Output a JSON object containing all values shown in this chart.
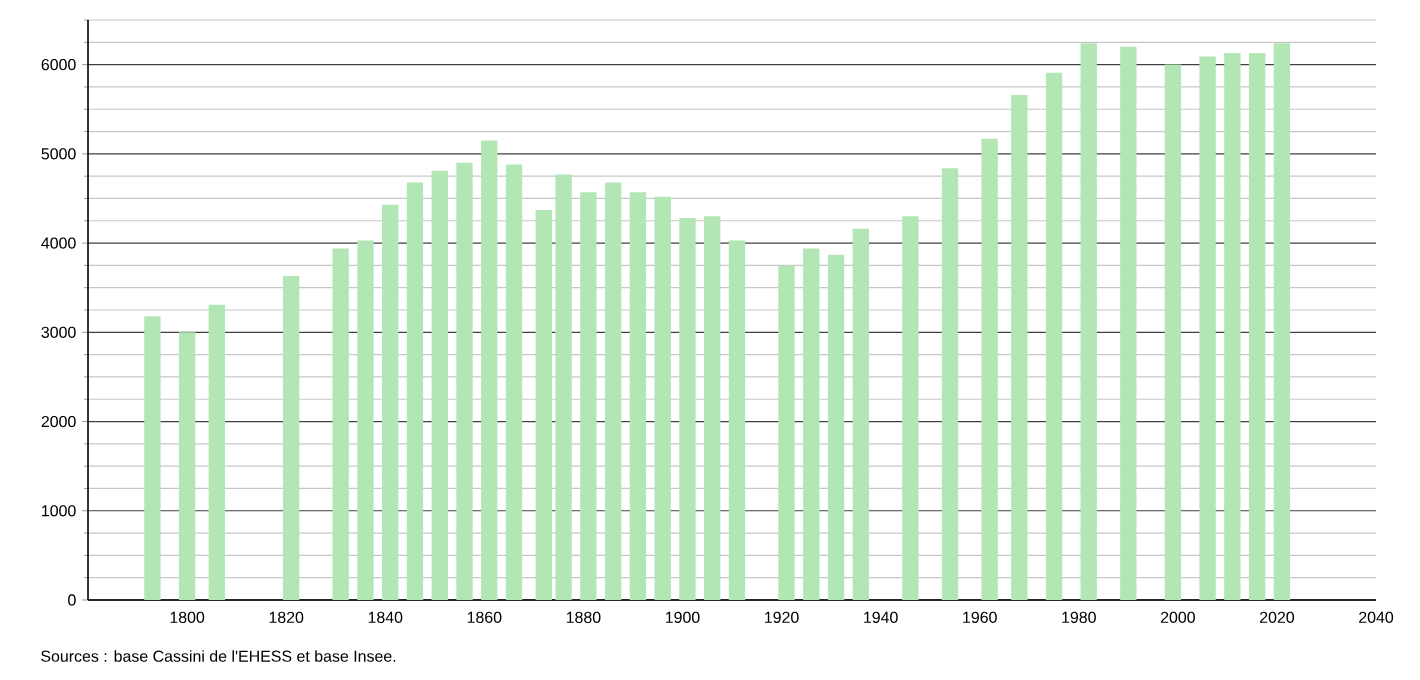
{
  "chart_data": {
    "type": "bar",
    "x": [
      1793,
      1800,
      1806,
      1821,
      1831,
      1836,
      1841,
      1846,
      1851,
      1856,
      1861,
      1866,
      1872,
      1876,
      1881,
      1886,
      1891,
      1896,
      1901,
      1906,
      1911,
      1921,
      1926,
      1931,
      1936,
      1946,
      1954,
      1962,
      1968,
      1975,
      1982,
      1990,
      1999,
      2006,
      2011,
      2016,
      2021
    ],
    "values": [
      3180,
      3000,
      3310,
      3630,
      3940,
      4030,
      4430,
      4680,
      4810,
      4900,
      5150,
      4880,
      4370,
      4770,
      4570,
      4680,
      4570,
      4520,
      4280,
      4300,
      4030,
      3750,
      3940,
      3870,
      4160,
      4300,
      4840,
      5170,
      5660,
      5910,
      6240,
      6200,
      6000,
      6090,
      6130,
      6130,
      6240
    ],
    "color": "#b3e6b5",
    "xlim": [
      1780,
      2040
    ],
    "ylim": [
      0,
      6500
    ],
    "xticks": [
      1800,
      1820,
      1840,
      1860,
      1880,
      1900,
      1920,
      1940,
      1960,
      1980,
      2000,
      2020,
      2040
    ],
    "yticks": [
      0,
      {
        "value": 250,
        "label": null
      },
      {
        "value": 500,
        "label": null
      },
      {
        "value": 750,
        "label": null
      },
      1000,
      {
        "value": 1250,
        "label": null
      },
      {
        "value": 1500,
        "label": null
      },
      {
        "value": 1750,
        "label": null
      },
      2000,
      {
        "value": 2250,
        "label": null
      },
      {
        "value": 2500,
        "label": null
      },
      {
        "value": 2750,
        "label": null
      },
      3000,
      {
        "value": 3250,
        "label": null
      },
      {
        "value": 3500,
        "label": null
      },
      {
        "value": 3750,
        "label": null
      },
      4000,
      {
        "value": 4250,
        "label": null
      },
      {
        "value": 4500,
        "label": null
      },
      {
        "value": 4750,
        "label": null
      },
      5000,
      {
        "value": 5250,
        "label": null
      },
      {
        "value": 5500,
        "label": null
      },
      {
        "value": 5750,
        "label": null
      },
      6000,
      {
        "value": 6250,
        "label": null
      },
      {
        "value": 6500,
        "label": null
      }
    ],
    "grid": "y",
    "annotations": [
      "Sources : base Cassini de l'EHESS et base Insee."
    ]
  }
}
